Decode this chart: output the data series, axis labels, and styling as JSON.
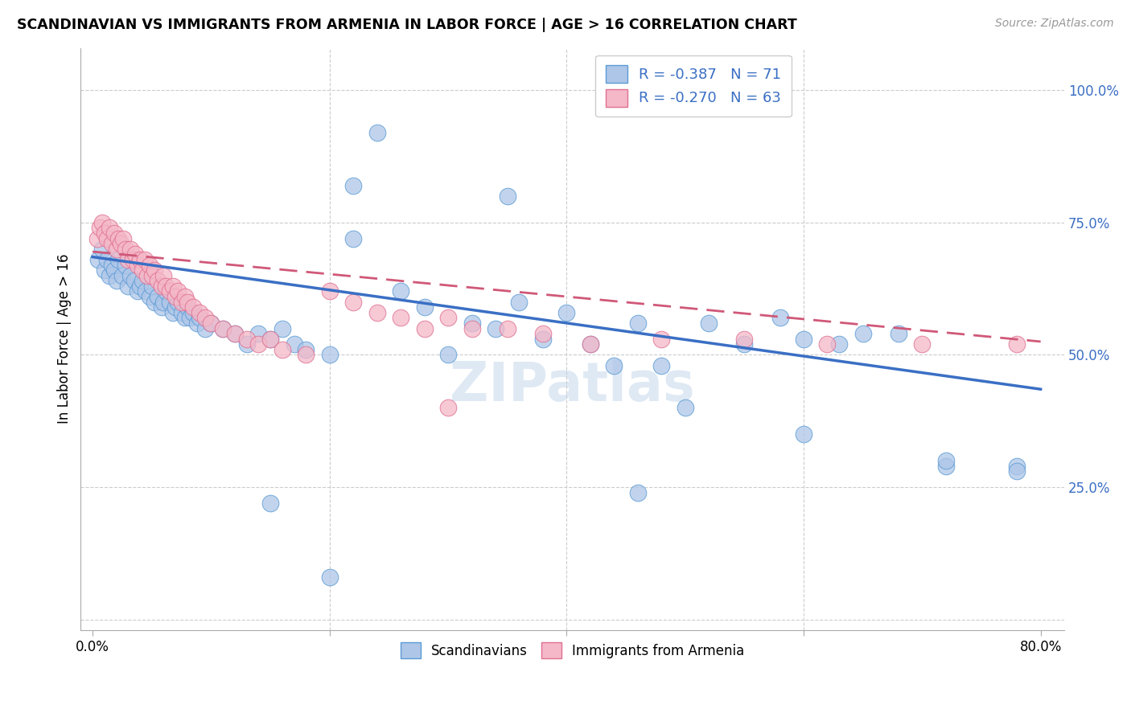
{
  "title": "SCANDINAVIAN VS IMMIGRANTS FROM ARMENIA IN LABOR FORCE | AGE > 16 CORRELATION CHART",
  "source": "Source: ZipAtlas.com",
  "ylabel": "In Labor Force | Age > 16",
  "xlim": [
    -0.01,
    0.82
  ],
  "ylim": [
    -0.02,
    1.08
  ],
  "ytick_values": [
    0.0,
    0.25,
    0.5,
    0.75,
    1.0
  ],
  "ytick_labels": [
    "",
    "25.0%",
    "50.0%",
    "75.0%",
    "100.0%"
  ],
  "xtick_values": [
    0.0,
    0.2,
    0.4,
    0.6,
    0.8
  ],
  "xtick_labels": [
    "0.0%",
    "",
    "",
    "",
    "80.0%"
  ],
  "blue_fill": "#aec6e8",
  "blue_edge": "#5b9bd5",
  "pink_fill": "#f4b8c8",
  "pink_edge": "#e07090",
  "blue_line": "#3a6fc4",
  "pink_line": "#d05878",
  "legend_blue_R": "-0.387",
  "legend_blue_N": "71",
  "legend_pink_R": "-0.270",
  "legend_pink_N": "63",
  "watermark": "ZIPatlas",
  "grid_color": "#cccccc",
  "blue_x": [
    0.005,
    0.008,
    0.01,
    0.012,
    0.014,
    0.016,
    0.018,
    0.02,
    0.022,
    0.025,
    0.028,
    0.03,
    0.032,
    0.035,
    0.038,
    0.04,
    0.042,
    0.045,
    0.048,
    0.05,
    0.052,
    0.055,
    0.058,
    0.06,
    0.062,
    0.065,
    0.068,
    0.07,
    0.072,
    0.075,
    0.078,
    0.08,
    0.082,
    0.085,
    0.088,
    0.09,
    0.095,
    0.1,
    0.11,
    0.12,
    0.13,
    0.14,
    0.15,
    0.16,
    0.17,
    0.18,
    0.2,
    0.22,
    0.24,
    0.26,
    0.28,
    0.3,
    0.32,
    0.34,
    0.36,
    0.38,
    0.4,
    0.42,
    0.44,
    0.46,
    0.48,
    0.5,
    0.52,
    0.55,
    0.58,
    0.6,
    0.63,
    0.65,
    0.68,
    0.72,
    0.78
  ],
  "blue_y": [
    0.68,
    0.7,
    0.66,
    0.68,
    0.65,
    0.67,
    0.66,
    0.64,
    0.68,
    0.65,
    0.67,
    0.63,
    0.65,
    0.64,
    0.62,
    0.63,
    0.64,
    0.62,
    0.61,
    0.63,
    0.6,
    0.61,
    0.59,
    0.6,
    0.62,
    0.6,
    0.58,
    0.59,
    0.6,
    0.58,
    0.57,
    0.59,
    0.57,
    0.58,
    0.56,
    0.57,
    0.55,
    0.56,
    0.55,
    0.54,
    0.52,
    0.54,
    0.53,
    0.55,
    0.52,
    0.51,
    0.5,
    0.72,
    0.92,
    0.62,
    0.59,
    0.5,
    0.56,
    0.55,
    0.6,
    0.53,
    0.58,
    0.52,
    0.48,
    0.56,
    0.48,
    0.4,
    0.56,
    0.52,
    0.57,
    0.53,
    0.52,
    0.54,
    0.54,
    0.29,
    0.29
  ],
  "blue_outliers_x": [
    0.22,
    0.35,
    0.46,
    0.6,
    0.72,
    0.78,
    0.15,
    0.2
  ],
  "blue_outliers_y": [
    0.82,
    0.8,
    0.24,
    0.35,
    0.3,
    0.28,
    0.22,
    0.08
  ],
  "pink_x": [
    0.004,
    0.006,
    0.008,
    0.01,
    0.012,
    0.014,
    0.016,
    0.018,
    0.02,
    0.022,
    0.024,
    0.026,
    0.028,
    0.03,
    0.032,
    0.034,
    0.036,
    0.038,
    0.04,
    0.042,
    0.044,
    0.046,
    0.048,
    0.05,
    0.052,
    0.055,
    0.058,
    0.06,
    0.062,
    0.065,
    0.068,
    0.07,
    0.072,
    0.075,
    0.078,
    0.08,
    0.085,
    0.09,
    0.095,
    0.1,
    0.11,
    0.12,
    0.13,
    0.14,
    0.15,
    0.16,
    0.18,
    0.2,
    0.22,
    0.24,
    0.26,
    0.28,
    0.3,
    0.32,
    0.35,
    0.38,
    0.42,
    0.48,
    0.55,
    0.62,
    0.7,
    0.78,
    0.3
  ],
  "pink_y": [
    0.72,
    0.74,
    0.75,
    0.73,
    0.72,
    0.74,
    0.71,
    0.73,
    0.7,
    0.72,
    0.71,
    0.72,
    0.7,
    0.68,
    0.7,
    0.68,
    0.69,
    0.67,
    0.68,
    0.66,
    0.68,
    0.65,
    0.67,
    0.65,
    0.66,
    0.64,
    0.63,
    0.65,
    0.63,
    0.62,
    0.63,
    0.61,
    0.62,
    0.6,
    0.61,
    0.6,
    0.59,
    0.58,
    0.57,
    0.56,
    0.55,
    0.54,
    0.53,
    0.52,
    0.53,
    0.51,
    0.5,
    0.62,
    0.6,
    0.58,
    0.57,
    0.55,
    0.57,
    0.55,
    0.55,
    0.54,
    0.52,
    0.53,
    0.53,
    0.52,
    0.52,
    0.52,
    0.4
  ]
}
